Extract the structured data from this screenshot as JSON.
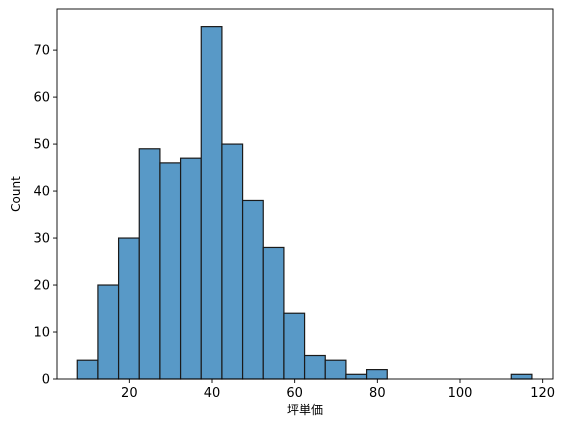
{
  "chart_data": {
    "type": "bar",
    "title": "",
    "xlabel": "坪単価",
    "ylabel": "Count",
    "xlim": [
      2.5,
      122.5
    ],
    "ylim": [
      0,
      78.75
    ],
    "xticks": [
      20,
      40,
      60,
      80,
      100,
      120
    ],
    "yticks": [
      0,
      10,
      20,
      30,
      40,
      50,
      60,
      70
    ],
    "bar_color": "#5899c7",
    "edge_color": "#1a1a1a",
    "grid": false,
    "bins": [
      {
        "x0": 7.4,
        "x1": 12.4,
        "count": 4
      },
      {
        "x0": 12.4,
        "x1": 17.4,
        "count": 20
      },
      {
        "x0": 17.4,
        "x1": 22.4,
        "count": 30
      },
      {
        "x0": 22.4,
        "x1": 27.4,
        "count": 49
      },
      {
        "x0": 27.4,
        "x1": 32.4,
        "count": 46
      },
      {
        "x0": 32.4,
        "x1": 37.4,
        "count": 47
      },
      {
        "x0": 37.4,
        "x1": 42.4,
        "count": 75
      },
      {
        "x0": 42.4,
        "x1": 47.4,
        "count": 50
      },
      {
        "x0": 47.4,
        "x1": 52.4,
        "count": 38
      },
      {
        "x0": 52.4,
        "x1": 57.4,
        "count": 28
      },
      {
        "x0": 57.4,
        "x1": 62.4,
        "count": 14
      },
      {
        "x0": 62.4,
        "x1": 67.4,
        "count": 5
      },
      {
        "x0": 67.4,
        "x1": 72.4,
        "count": 4
      },
      {
        "x0": 72.4,
        "x1": 77.4,
        "count": 1
      },
      {
        "x0": 77.4,
        "x1": 82.4,
        "count": 2
      },
      {
        "x0": 112.4,
        "x1": 117.4,
        "count": 1
      }
    ]
  }
}
